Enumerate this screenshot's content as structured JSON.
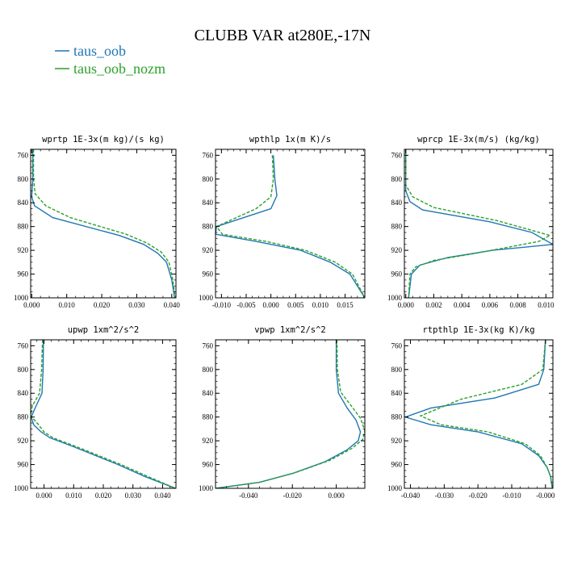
{
  "figure": {
    "title": "CLUBB VAR at280E,-17N",
    "legend": [
      {
        "name": "taus_oob",
        "color": "#1f77b4",
        "style": "solid"
      },
      {
        "name": "taus_oob_nozm",
        "color": "#2ca02c",
        "style": "dashed"
      }
    ]
  },
  "chart_data": [
    {
      "type": "line",
      "title": "wprtp  1E-3x(m kg)/(s kg)",
      "xlim": [
        -0.0003,
        0.0412
      ],
      "ylim": [
        1000,
        750
      ],
      "xticks": [
        0.0,
        0.01,
        0.02,
        0.03,
        0.04
      ],
      "xtick_labels": [
        "0.000",
        "0.010",
        "0.020",
        "0.030",
        "0.040"
      ],
      "yticks": [
        760,
        800,
        840,
        880,
        920,
        960,
        1000
      ],
      "ytick_labels": [
        "760",
        "800",
        "840",
        "880",
        "920",
        "960",
        "1000"
      ],
      "series": [
        {
          "name": "taus_oob",
          "color": "#1f77b4",
          "dash": "",
          "points": [
            [
              0.0003,
              750
            ],
            [
              0.0003,
              800
            ],
            [
              0.0,
              830
            ],
            [
              0.0008,
              845
            ],
            [
              0.006,
              865
            ],
            [
              0.025,
              895
            ],
            [
              0.032,
              910
            ],
            [
              0.036,
              925
            ],
            [
              0.0385,
              940
            ],
            [
              0.04,
              970
            ],
            [
              0.0408,
              1000
            ]
          ]
        },
        {
          "name": "taus_oob_nozm",
          "color": "#2ca02c",
          "dash": "4,2",
          "points": [
            [
              0.0005,
              750
            ],
            [
              0.0005,
              800
            ],
            [
              0.001,
              825
            ],
            [
              0.004,
              845
            ],
            [
              0.011,
              865
            ],
            [
              0.027,
              893
            ],
            [
              0.033,
              908
            ],
            [
              0.037,
              923
            ],
            [
              0.0392,
              940
            ],
            [
              0.0403,
              970
            ],
            [
              0.041,
              1000
            ]
          ]
        }
      ]
    },
    {
      "type": "line",
      "title": "wpthlp  1x(m K)/s",
      "xlim": [
        -0.0112,
        0.019
      ],
      "ylim": [
        1000,
        750
      ],
      "xticks": [
        -0.01,
        -0.005,
        0.0,
        0.005,
        0.01,
        0.015
      ],
      "xtick_labels": [
        "-0.010",
        "-0.005",
        "0.000",
        "0.005",
        "0.010",
        "0.015"
      ],
      "yticks": [
        760,
        800,
        840,
        880,
        920,
        960,
        1000
      ],
      "ytick_labels": [
        "760",
        "800",
        "840",
        "880",
        "920",
        "960",
        "1000"
      ],
      "series": [
        {
          "name": "taus_oob",
          "color": "#1f77b4",
          "dash": "",
          "points": [
            [
              0.0005,
              760
            ],
            [
              0.0008,
              800
            ],
            [
              0.0012,
              828
            ],
            [
              0.0,
              850
            ],
            [
              -0.011,
              880
            ],
            [
              -0.0112,
              893
            ],
            [
              -0.003,
              905
            ],
            [
              0.006,
              920
            ],
            [
              0.012,
              940
            ],
            [
              0.016,
              960
            ],
            [
              0.019,
              1000
            ]
          ]
        },
        {
          "name": "taus_oob_nozm",
          "color": "#2ca02c",
          "dash": "4,2",
          "points": [
            [
              0.0003,
              760
            ],
            [
              0.0005,
              800
            ],
            [
              0.0,
              830
            ],
            [
              -0.003,
              850
            ],
            [
              -0.011,
              880
            ],
            [
              -0.0098,
              893
            ],
            [
              -0.001,
              905
            ],
            [
              0.007,
              920
            ],
            [
              0.013,
              940
            ],
            [
              0.0165,
              960
            ],
            [
              0.019,
              1000
            ]
          ]
        }
      ]
    },
    {
      "type": "line",
      "title": "wprcp  1E-3x(m/s) (kg/kg)",
      "xlim": [
        -0.0001,
        0.0105
      ],
      "ylim": [
        1000,
        750
      ],
      "xticks": [
        0.0,
        0.002,
        0.004,
        0.006,
        0.008,
        0.01
      ],
      "xtick_labels": [
        "0.000",
        "0.002",
        "0.004",
        "0.006",
        "0.008",
        "0.010"
      ],
      "yticks": [
        760,
        800,
        840,
        880,
        920,
        960,
        1000
      ],
      "ytick_labels": [
        "760",
        "800",
        "840",
        "880",
        "920",
        "960",
        "1000"
      ],
      "series": [
        {
          "name": "taus_oob",
          "color": "#1f77b4",
          "dash": "",
          "points": [
            [
              0.0,
              750
            ],
            [
              0.0,
              820
            ],
            [
              0.0003,
              838
            ],
            [
              0.0012,
              852
            ],
            [
              0.006,
              872
            ],
            [
              0.009,
              890
            ],
            [
              0.0105,
              910
            ],
            [
              0.0062,
              920
            ],
            [
              0.003,
              932
            ],
            [
              0.001,
              945
            ],
            [
              0.0004,
              960
            ],
            [
              0.0002,
              1000
            ]
          ]
        },
        {
          "name": "taus_oob_nozm",
          "color": "#2ca02c",
          "dash": "4,2",
          "points": [
            [
              0.0,
              750
            ],
            [
              0.0,
              810
            ],
            [
              0.0005,
              830
            ],
            [
              0.002,
              848
            ],
            [
              0.0065,
              870
            ],
            [
              0.0103,
              895
            ],
            [
              0.0095,
              905
            ],
            [
              0.005,
              925
            ],
            [
              0.002,
              937
            ],
            [
              0.0007,
              948
            ],
            [
              0.0003,
              960
            ],
            [
              0.0002,
              1000
            ]
          ]
        }
      ]
    },
    {
      "type": "line",
      "title": "upwp  1xm^2/s^2",
      "xlim": [
        -0.0045,
        0.0445
      ],
      "ylim": [
        1000,
        750
      ],
      "xticks": [
        0.0,
        0.01,
        0.02,
        0.03,
        0.04
      ],
      "xtick_labels": [
        "0.000",
        "0.010",
        "0.020",
        "0.030",
        "0.040"
      ],
      "yticks": [
        760,
        800,
        840,
        880,
        920,
        960,
        1000
      ],
      "ytick_labels": [
        "760",
        "800",
        "840",
        "880",
        "920",
        "960",
        "1000"
      ],
      "series": [
        {
          "name": "taus_oob",
          "color": "#1f77b4",
          "dash": "",
          "points": [
            [
              -0.0002,
              750
            ],
            [
              -0.0003,
              800
            ],
            [
              -0.0007,
              840
            ],
            [
              -0.003,
              865
            ],
            [
              -0.0043,
              880
            ],
            [
              -0.0035,
              893
            ],
            [
              -0.001,
              905
            ],
            [
              0.002,
              915
            ],
            [
              0.01,
              930
            ],
            [
              0.025,
              960
            ],
            [
              0.034,
              980
            ],
            [
              0.0443,
              1000
            ]
          ]
        },
        {
          "name": "taus_oob_nozm",
          "color": "#2ca02c",
          "dash": "4,2",
          "points": [
            [
              -0.0005,
              750
            ],
            [
              -0.0008,
              800
            ],
            [
              -0.0015,
              840
            ],
            [
              -0.004,
              862
            ],
            [
              -0.0045,
              878
            ],
            [
              -0.002,
              892
            ],
            [
              0.0,
              905
            ],
            [
              0.003,
              915
            ],
            [
              0.011,
              930
            ],
            [
              0.026,
              960
            ],
            [
              0.035,
              980
            ],
            [
              0.0443,
              1000
            ]
          ]
        }
      ]
    },
    {
      "type": "line",
      "title": "vpwp  1xm^2/s^2",
      "xlim": [
        -0.055,
        0.013
      ],
      "ylim": [
        1000,
        750
      ],
      "xticks": [
        -0.04,
        -0.02,
        0.0
      ],
      "xtick_labels": [
        "-0.040",
        "-0.020",
        "0.000"
      ],
      "yticks": [
        760,
        800,
        840,
        880,
        920,
        960,
        1000
      ],
      "ytick_labels": [
        "760",
        "800",
        "840",
        "880",
        "920",
        "960",
        "1000"
      ],
      "series": [
        {
          "name": "taus_oob",
          "color": "#1f77b4",
          "dash": "",
          "points": [
            [
              0.0,
              750
            ],
            [
              0.0,
              800
            ],
            [
              0.001,
              840
            ],
            [
              0.005,
              865
            ],
            [
              0.009,
              885
            ],
            [
              0.011,
              905
            ],
            [
              0.01,
              920
            ],
            [
              0.005,
              935
            ],
            [
              -0.005,
              955
            ],
            [
              -0.02,
              975
            ],
            [
              -0.035,
              990
            ],
            [
              -0.055,
              1000
            ]
          ]
        },
        {
          "name": "taus_oob_nozm",
          "color": "#2ca02c",
          "dash": "4,2",
          "points": [
            [
              0.0003,
              750
            ],
            [
              0.0005,
              800
            ],
            [
              0.002,
              838
            ],
            [
              0.007,
              862
            ],
            [
              0.011,
              882
            ],
            [
              0.013,
              903
            ],
            [
              0.012,
              918
            ],
            [
              0.007,
              933
            ],
            [
              -0.003,
              953
            ],
            [
              -0.019,
              974
            ],
            [
              -0.035,
              990
            ],
            [
              -0.055,
              1000
            ]
          ]
        }
      ]
    },
    {
      "type": "line",
      "title": "rtpthlp  1E-3x(kg K)/kg",
      "xlim": [
        -0.0418,
        0.0022
      ],
      "ylim": [
        1000,
        750
      ],
      "xticks": [
        -0.04,
        -0.03,
        -0.02,
        -0.01,
        0.0
      ],
      "xtick_labels": [
        "-0.040",
        "-0.030",
        "-0.020",
        "-0.010",
        "-0.000"
      ],
      "yticks": [
        760,
        800,
        840,
        880,
        920,
        960,
        1000
      ],
      "ytick_labels": [
        "760",
        "800",
        "840",
        "880",
        "920",
        "960",
        "1000"
      ],
      "series": [
        {
          "name": "taus_oob",
          "color": "#1f77b4",
          "dash": "",
          "points": [
            [
              0.0,
              750
            ],
            [
              -0.0005,
              800
            ],
            [
              -0.002,
              825
            ],
            [
              -0.015,
              848
            ],
            [
              -0.034,
              865
            ],
            [
              -0.0415,
              880
            ],
            [
              -0.034,
              893
            ],
            [
              -0.02,
              905
            ],
            [
              -0.007,
              925
            ],
            [
              -0.002,
              945
            ],
            [
              0.0005,
              965
            ],
            [
              0.0015,
              980
            ],
            [
              0.002,
              1000
            ]
          ]
        },
        {
          "name": "taus_oob_nozm",
          "color": "#2ca02c",
          "dash": "4,2",
          "points": [
            [
              0.0,
              750
            ],
            [
              -0.0008,
              800
            ],
            [
              -0.007,
              825
            ],
            [
              -0.025,
              850
            ],
            [
              -0.037,
              878
            ],
            [
              -0.031,
              893
            ],
            [
              -0.017,
              905
            ],
            [
              -0.006,
              925
            ],
            [
              -0.0015,
              945
            ],
            [
              0.0005,
              965
            ],
            [
              0.0015,
              980
            ],
            [
              0.002,
              1000
            ]
          ]
        }
      ]
    }
  ]
}
